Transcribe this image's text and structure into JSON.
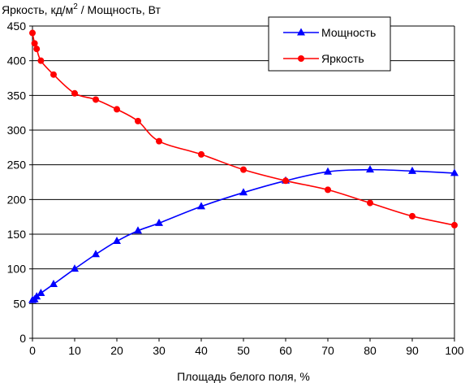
{
  "chart_data": {
    "type": "line",
    "title": "",
    "ylabel": "Яркость, кд/м",
    "ylabel_sup": "2",
    "ylabel_suffix": " / Мощность, Вт",
    "xlabel": "Площадь белого поля, %",
    "xlim": [
      0,
      100
    ],
    "ylim": [
      0,
      450
    ],
    "xticks": [
      0,
      10,
      20,
      30,
      40,
      50,
      60,
      70,
      80,
      90,
      100
    ],
    "yticks": [
      0,
      50,
      100,
      150,
      200,
      250,
      300,
      350,
      400,
      450
    ],
    "grid": true,
    "legend_position": "top-right",
    "series": [
      {
        "name": "Мощность",
        "color": "#0000ff",
        "marker": "triangle",
        "x": [
          0,
          0.5,
          1,
          2,
          5,
          10,
          15,
          20,
          25,
          30,
          40,
          50,
          60,
          70,
          80,
          90,
          100
        ],
        "y": [
          55,
          56,
          60,
          65,
          78,
          100,
          121,
          140,
          155,
          166,
          190,
          210,
          227,
          240,
          243,
          241,
          238
        ]
      },
      {
        "name": "Яркость",
        "color": "#ff0000",
        "marker": "circle",
        "x": [
          0,
          0.5,
          1,
          2,
          5,
          10,
          15,
          20,
          25,
          30,
          40,
          50,
          60,
          70,
          80,
          90,
          100
        ],
        "y": [
          440,
          425,
          417,
          400,
          380,
          353,
          344,
          330,
          313,
          284,
          265,
          243,
          227,
          214,
          195,
          176,
          163
        ]
      }
    ]
  }
}
